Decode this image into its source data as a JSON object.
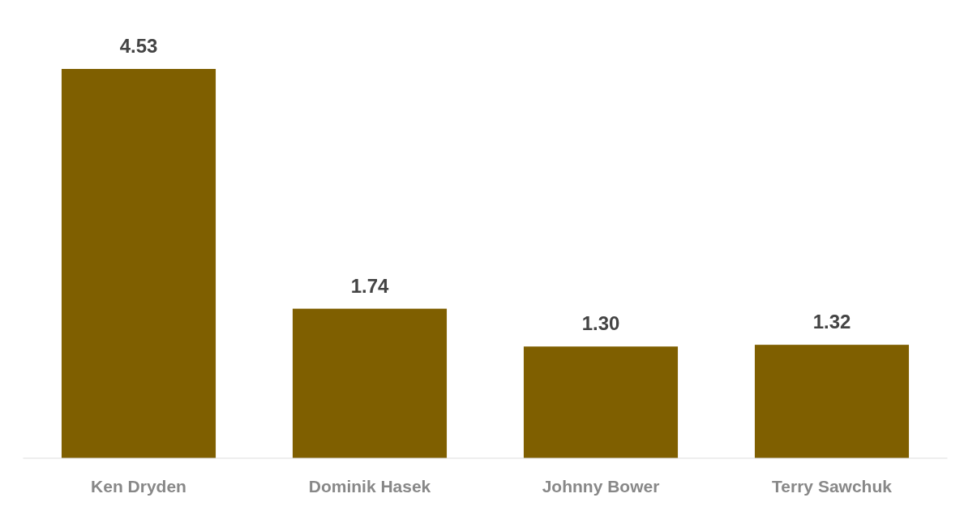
{
  "chart_data": {
    "type": "bar",
    "categories": [
      "Ken Dryden",
      "Dominik Hasek",
      "Johnny Bower",
      "Terry Sawchuk"
    ],
    "values": [
      4.53,
      1.74,
      1.3,
      1.32
    ],
    "value_labels": [
      "4.53",
      "1.74",
      "1.30",
      "1.32"
    ],
    "color": "#7f5f00"
  }
}
